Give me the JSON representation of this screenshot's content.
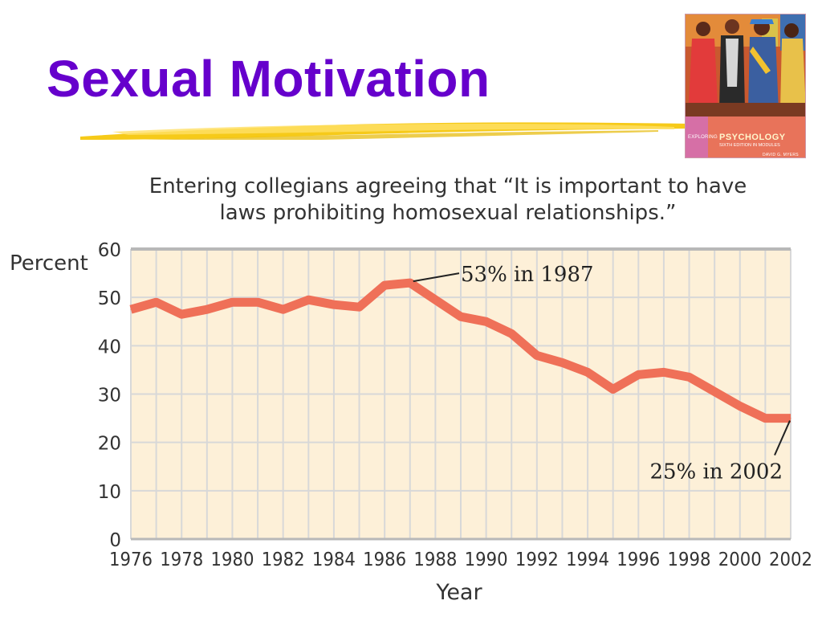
{
  "slide": {
    "title": "Sexual Motivation",
    "book_cover": {
      "series": "EXPLORING",
      "title": "PSYCHOLOGY",
      "edition": "SIXTH EDITION IN MODULES",
      "author": "DAVID G. MYERS"
    }
  },
  "colors": {
    "title": "#6600cc",
    "underline": "#f5c400",
    "plot_background": "#fdf0d8",
    "grid": "#d8d8d8",
    "top_rule": "#b8b8b8",
    "series_line": "#ef7058",
    "text": "#333333"
  },
  "chart_data": {
    "type": "line",
    "title_lines": [
      "Entering collegians agreeing that “It is important to have",
      "laws prohibiting homosexual relationships.”"
    ],
    "xlabel": "Year",
    "ylabel": "Percent",
    "xlim": [
      1976,
      2002
    ],
    "ylim": [
      0,
      60
    ],
    "x_ticks": [
      1976,
      1978,
      1980,
      1982,
      1984,
      1986,
      1988,
      1990,
      1992,
      1994,
      1996,
      1998,
      2000,
      2002
    ],
    "y_ticks": [
      0,
      10,
      20,
      30,
      40,
      50,
      60
    ],
    "grid": true,
    "legend": false,
    "series": [
      {
        "x": [
          1976,
          1977,
          1978,
          1979,
          1980,
          1981,
          1982,
          1983,
          1984,
          1985,
          1986,
          1987,
          1988,
          1989,
          1990,
          1991,
          1992,
          1993,
          1994,
          1995,
          1996,
          1997,
          1998,
          1999,
          2000,
          2001,
          2002
        ],
        "values": [
          47.5,
          49,
          46.5,
          47.5,
          49,
          49,
          47.5,
          49.5,
          48.5,
          48,
          52.5,
          53,
          49.5,
          46,
          45,
          42.5,
          38,
          36.5,
          34.5,
          31,
          34,
          34.5,
          33.5,
          30.5,
          27.5,
          25,
          25
        ]
      }
    ],
    "annotations": [
      {
        "text": "53% in 1987",
        "x": 1987,
        "y": 53
      },
      {
        "text": "25% in 2002",
        "x": 2002,
        "y": 25
      }
    ]
  }
}
